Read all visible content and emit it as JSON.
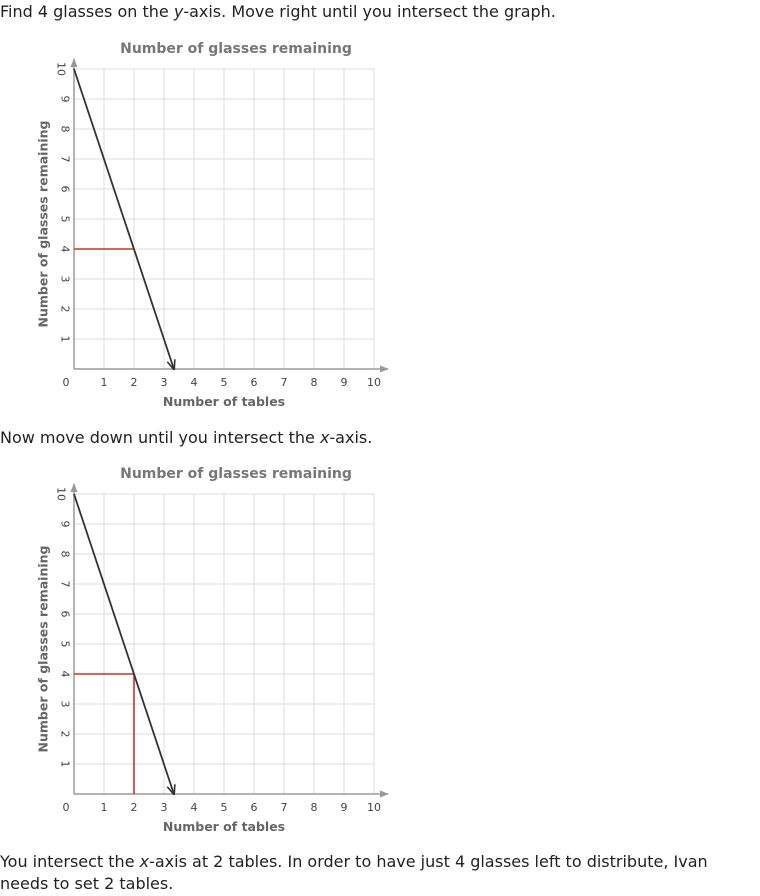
{
  "step1": {
    "before": "Find 4 glasses on the ",
    "var": "y",
    "after": "-axis. Move right until you intersect the graph."
  },
  "step2": {
    "before": "Now move down until you intersect the ",
    "var": "x",
    "after": "-axis."
  },
  "conclusion": {
    "before": "You intersect the ",
    "var": "x",
    "after": "-axis at 2 tables. In order to have just 4 glasses left to distribute, Ivan needs to set 2 tables."
  },
  "chart_data": [
    {
      "type": "line",
      "title": "Number of glasses remaining",
      "xlabel": "Number of tables",
      "ylabel": "Number of glasses remaining",
      "xlim": [
        0,
        10
      ],
      "ylim": [
        0,
        10
      ],
      "x_ticks": [
        "0",
        "1",
        "2",
        "3",
        "4",
        "5",
        "6",
        "7",
        "8",
        "9",
        "10"
      ],
      "y_ticks": [
        "1",
        "2",
        "3",
        "4",
        "5",
        "6",
        "7",
        "8",
        "9",
        "10"
      ],
      "grid": true,
      "series": [
        {
          "points": [
            [
              0,
              10
            ],
            [
              3.33,
              0
            ]
          ],
          "color": "#333333",
          "arrow": true
        }
      ],
      "guides": [
        {
          "from": [
            0,
            4
          ],
          "to": [
            2,
            4
          ],
          "color": "#d0302b"
        }
      ]
    },
    {
      "type": "line",
      "title": "Number of glasses remaining",
      "xlabel": "Number of tables",
      "ylabel": "Number of glasses remaining",
      "xlim": [
        0,
        10
      ],
      "ylim": [
        0,
        10
      ],
      "x_ticks": [
        "0",
        "1",
        "2",
        "3",
        "4",
        "5",
        "6",
        "7",
        "8",
        "9",
        "10"
      ],
      "y_ticks": [
        "1",
        "2",
        "3",
        "4",
        "5",
        "6",
        "7",
        "8",
        "9",
        "10"
      ],
      "grid": true,
      "series": [
        {
          "points": [
            [
              0,
              10
            ],
            [
              3.33,
              0
            ]
          ],
          "color": "#333333",
          "arrow": true
        }
      ],
      "guides": [
        {
          "from": [
            0,
            4
          ],
          "to": [
            2,
            4
          ],
          "color": "#d0302b"
        },
        {
          "from": [
            2,
            4
          ],
          "to": [
            2,
            0
          ],
          "color": "#d0302b"
        }
      ]
    }
  ]
}
